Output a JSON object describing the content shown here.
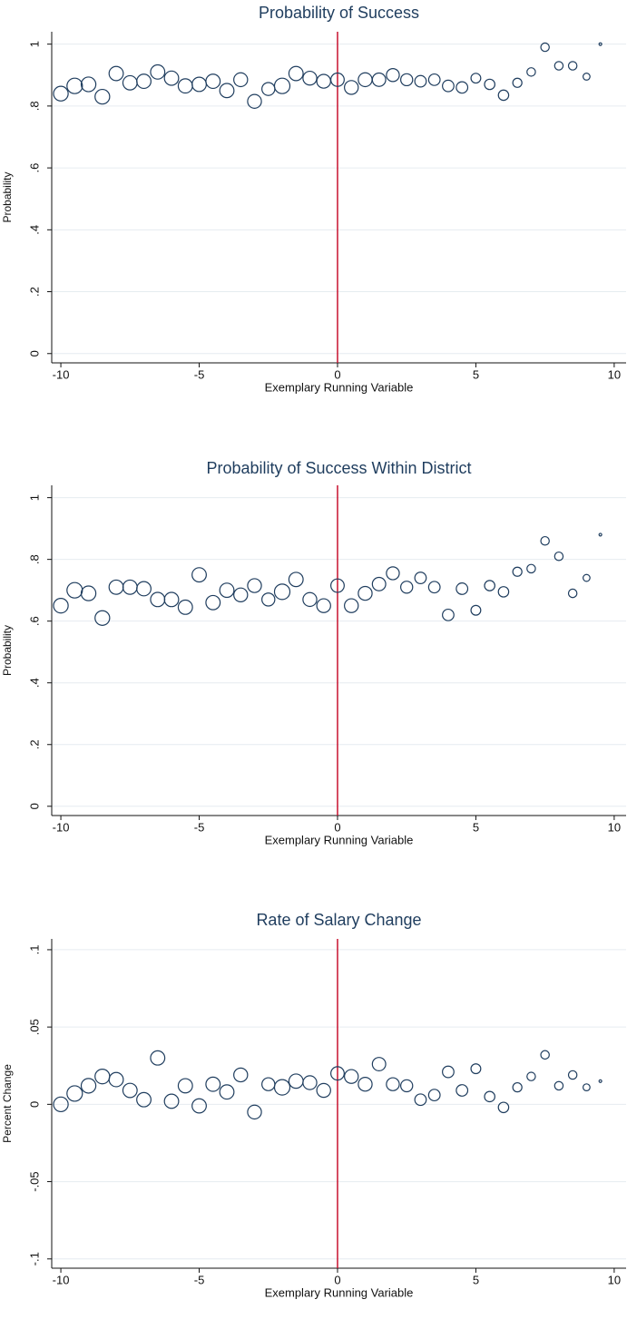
{
  "chart_data": [
    {
      "type": "scatter",
      "title": "Probability of Success",
      "xlabel": "Exemplary Running Variable",
      "ylabel": "Probability",
      "x": [
        -10,
        -9.5,
        -9,
        -8.5,
        -8,
        -7.5,
        -7,
        -6.5,
        -6,
        -5.5,
        -5,
        -4.5,
        -4,
        -3.5,
        -3,
        -2.5,
        -2,
        -1.5,
        -1,
        -0.5,
        0,
        0.5,
        1,
        1.5,
        2,
        2.5,
        3,
        3.5,
        4,
        4.5,
        5,
        5.5,
        6,
        6.5,
        7,
        7.5,
        8,
        8.5,
        9,
        9.5
      ],
      "values": [
        0.84,
        0.865,
        0.87,
        0.83,
        0.905,
        0.875,
        0.88,
        0.91,
        0.89,
        0.865,
        0.87,
        0.88,
        0.85,
        0.885,
        0.815,
        0.855,
        0.865,
        0.905,
        0.89,
        0.88,
        0.885,
        0.86,
        0.885,
        0.885,
        0.9,
        0.885,
        0.88,
        0.885,
        0.865,
        0.86,
        0.89,
        0.87,
        0.835,
        0.875,
        0.91,
        0.99,
        0.93,
        0.93,
        0.895,
        1.0
      ],
      "sizes": [
        90,
        100,
        90,
        90,
        85,
        85,
        85,
        85,
        85,
        85,
        85,
        85,
        85,
        80,
        80,
        70,
        100,
        85,
        80,
        80,
        75,
        80,
        80,
        75,
        70,
        60,
        55,
        55,
        55,
        55,
        40,
        45,
        45,
        35,
        30,
        30,
        30,
        30,
        20,
        3
      ],
      "color": "#1f3d5e",
      "vline": 0,
      "vline_color": "#c8102e",
      "grid": true,
      "xlim": [
        -10.33,
        10.43
      ],
      "xticks": [
        -10,
        -5,
        0,
        5,
        10
      ],
      "ylim": [
        -0.03,
        1.04
      ],
      "yticks": [
        0,
        {
          "value": 0.2,
          "label": ".2"
        },
        {
          "value": 0.4,
          "label": ".4"
        },
        {
          "value": 0.6,
          "label": ".6"
        },
        {
          "value": 0.8,
          "label": ".8"
        },
        1
      ]
    },
    {
      "type": "scatter",
      "title": "Probability of Success Within District",
      "xlabel": "Exemplary Running Variable",
      "ylabel": "Probability",
      "x": [
        -10,
        -9.5,
        -9,
        -8.5,
        -8,
        -7.5,
        -7,
        -6.5,
        -6,
        -5.5,
        -5,
        -4.5,
        -4,
        -3.5,
        -3,
        -2.5,
        -2,
        -1.5,
        -1,
        -0.5,
        0,
        0.5,
        1,
        1.5,
        2,
        2.5,
        3,
        3.5,
        4,
        4.5,
        5,
        5.5,
        6,
        6.5,
        7,
        7.5,
        8,
        8.5,
        9,
        9.5
      ],
      "values": [
        0.65,
        0.7,
        0.69,
        0.61,
        0.71,
        0.71,
        0.705,
        0.67,
        0.67,
        0.645,
        0.75,
        0.66,
        0.7,
        0.685,
        0.715,
        0.67,
        0.695,
        0.735,
        0.67,
        0.65,
        0.715,
        0.65,
        0.69,
        0.72,
        0.755,
        0.71,
        0.74,
        0.71,
        0.62,
        0.705,
        0.635,
        0.715,
        0.695,
        0.76,
        0.77,
        0.86,
        0.81,
        0.69,
        0.74,
        0.88
      ],
      "sizes": [
        90,
        100,
        90,
        90,
        85,
        85,
        85,
        85,
        85,
        85,
        85,
        85,
        85,
        80,
        80,
        70,
        100,
        85,
        80,
        80,
        75,
        80,
        80,
        75,
        70,
        60,
        55,
        55,
        55,
        55,
        40,
        45,
        45,
        35,
        30,
        30,
        30,
        30,
        20,
        3
      ],
      "color": "#1f3d5e",
      "vline": 0,
      "vline_color": "#c8102e",
      "grid": true,
      "xlim": [
        -10.33,
        10.43
      ],
      "xticks": [
        -10,
        -5,
        0,
        5,
        10
      ],
      "ylim": [
        -0.03,
        1.04
      ],
      "yticks": [
        0,
        {
          "value": 0.2,
          "label": ".2"
        },
        {
          "value": 0.4,
          "label": ".4"
        },
        {
          "value": 0.6,
          "label": ".6"
        },
        {
          "value": 0.8,
          "label": ".8"
        },
        1
      ]
    },
    {
      "type": "scatter",
      "title": "Rate of Salary Change",
      "xlabel": "Exemplary Running Variable",
      "ylabel": "Percent Change",
      "x": [
        -10,
        -9.5,
        -9,
        -8.5,
        -8,
        -7.5,
        -7,
        -6.5,
        -6,
        -5.5,
        -5,
        -4.5,
        -4,
        -3.5,
        -3,
        -2.5,
        -2,
        -1.5,
        -1,
        -0.5,
        0,
        0.5,
        1,
        1.5,
        2,
        2.5,
        3,
        3.5,
        4,
        4.5,
        5,
        5.5,
        6,
        6.5,
        7,
        7.5,
        8,
        8.5,
        9,
        9.5
      ],
      "values": [
        0,
        0.007,
        0.012,
        0.018,
        0.016,
        0.009,
        0.003,
        0.03,
        0.002,
        0.012,
        -0.001,
        0.013,
        0.008,
        0.019,
        -0.005,
        0.013,
        0.011,
        0.015,
        0.014,
        0.009,
        0.02,
        0.018,
        0.013,
        0.026,
        0.013,
        0.012,
        0.003,
        0.006,
        0.021,
        0.009,
        0.023,
        0.005,
        -0.002,
        0.011,
        0.018,
        0.032,
        0.012,
        0.019,
        0.011,
        0.015
      ],
      "sizes": [
        90,
        100,
        90,
        90,
        85,
        85,
        85,
        85,
        85,
        85,
        85,
        85,
        85,
        80,
        80,
        70,
        100,
        85,
        80,
        80,
        75,
        80,
        80,
        75,
        70,
        60,
        55,
        55,
        55,
        55,
        40,
        45,
        45,
        35,
        30,
        30,
        30,
        30,
        20,
        3
      ],
      "color": "#1f3d5e",
      "vline": 0,
      "vline_color": "#c8102e",
      "grid": true,
      "xlim": [
        -10.33,
        10.43
      ],
      "xticks": [
        -10,
        -5,
        0,
        5,
        10
      ],
      "ylim": [
        -0.106,
        0.107
      ],
      "yticks": [
        {
          "value": -0.1,
          "label": "-.1"
        },
        {
          "value": -0.05,
          "label": "-.05"
        },
        0,
        {
          "value": 0.05,
          "label": ".05"
        },
        {
          "value": 0.1,
          "label": ".1"
        }
      ]
    }
  ]
}
